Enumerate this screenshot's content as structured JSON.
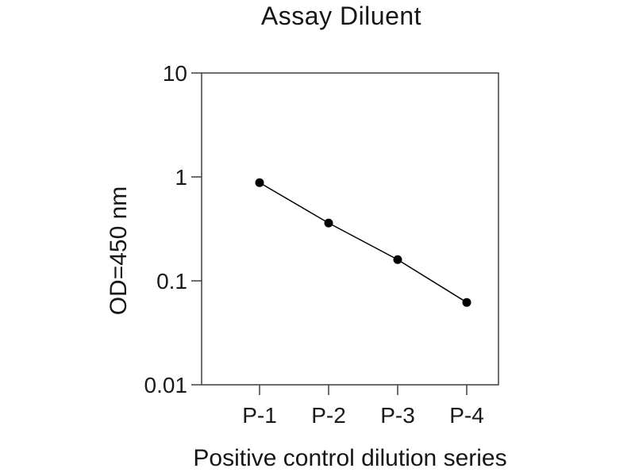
{
  "chart_data": {
    "type": "line",
    "title": "Assay Diluent",
    "xlabel": "Positive control dilution series",
    "ylabel": "OD=450 nm",
    "categories": [
      "P-1",
      "P-2",
      "P-3",
      "P-4"
    ],
    "values": [
      0.88,
      0.36,
      0.16,
      0.062
    ],
    "y_scale": "log",
    "ylim": [
      0.01,
      10
    ],
    "y_ticks": [
      10,
      1,
      0.1,
      0.01
    ],
    "y_tick_labels": [
      "10",
      "1",
      "0.1",
      "0.01"
    ],
    "grid": false,
    "legend": "none",
    "marker": "filled-circle",
    "marker_radius_px": 5.5,
    "colors": {
      "background": "#ffffff",
      "line": "#000000",
      "marker": "#000000",
      "axis": "#4a4a4a",
      "text": "#1a1a1a"
    }
  }
}
